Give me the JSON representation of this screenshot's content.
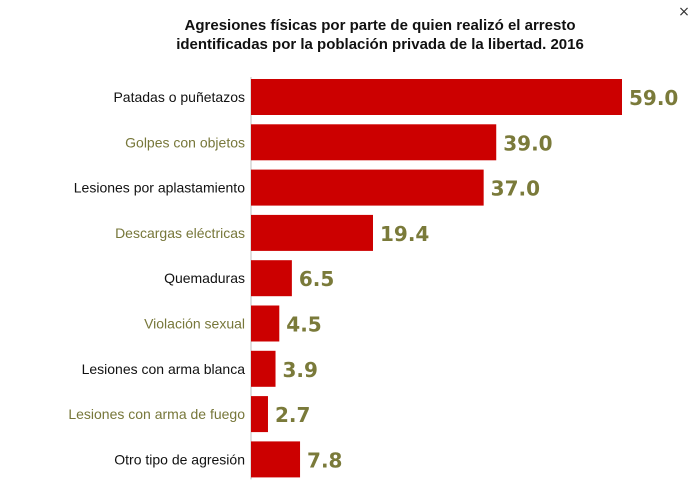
{
  "window": {
    "close_glyph": "×"
  },
  "chart_data": {
    "type": "bar",
    "orientation": "horizontal",
    "title": "Agresiones físicas por parte de quien realizó el arresto\nidentificadas por la población privada de la libertad. 2016",
    "categories": [
      "Patadas o puñetazos",
      "Golpes con objetos",
      "Lesiones por aplastamiento",
      "Descargas eléctricas",
      "Quemaduras",
      "Violación sexual",
      "Lesiones con arma blanca",
      "Lesiones con arma de fuego",
      "Otro tipo de agresión"
    ],
    "values": [
      59.0,
      39.0,
      37.0,
      19.4,
      6.5,
      4.5,
      3.9,
      2.7,
      7.8
    ],
    "value_labels": [
      "59.0",
      "39.0",
      "37.0",
      "19.4",
      "6.5",
      "4.5",
      "3.9",
      "2.7",
      "7.8"
    ],
    "xlim": [
      0,
      59.0
    ],
    "grid": false,
    "colors": {
      "bar": "#cc0000",
      "value_label": "#7a7a3a",
      "category_dark": "#111111",
      "category_olive": "#77773a"
    }
  }
}
